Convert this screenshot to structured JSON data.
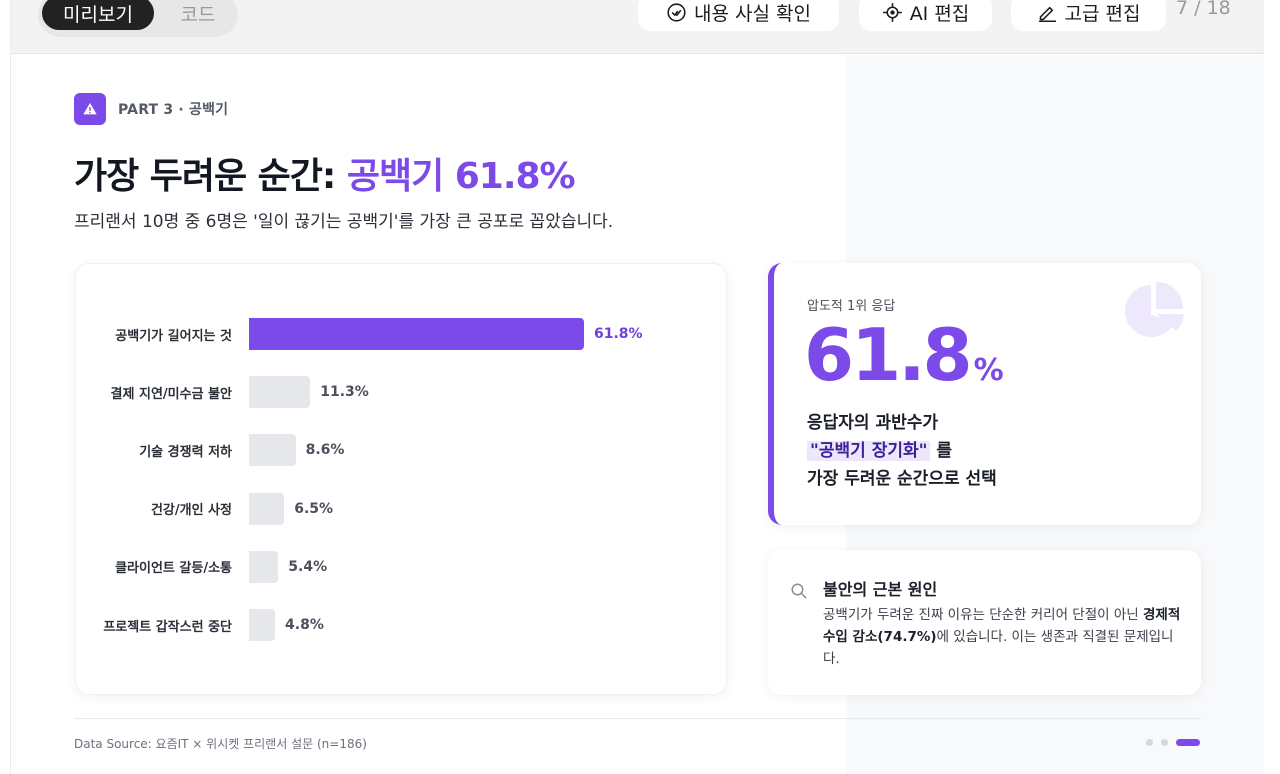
{
  "toolbar": {
    "view_tabs": [
      {
        "label": "미리보기",
        "active": true
      },
      {
        "label": "코드",
        "active": false
      }
    ],
    "buttons": {
      "fact_check": {
        "label": "내용 사실 확인",
        "icon": "check-circle-icon"
      },
      "ai_edit": {
        "label": "AI 편집",
        "icon": "crosshair-icon"
      },
      "advanced_edit": {
        "label": "고급 편집",
        "icon": "pencil-icon"
      }
    },
    "page_indicator": "7 / 18"
  },
  "slide": {
    "part_label": "PART 3 · 공백기",
    "part_icon": "warning-icon",
    "title_prefix": "가장 두려운 순간: ",
    "title_accent": "공백기 61.8%",
    "subtitle": "프리랜서 10명 중 6명은 '일이 끊기는 공백기'를 가장 큰 공포로 꼽았습니다.",
    "colors": {
      "accent": "#7c4ae8",
      "bar_muted": "#e6e7eb",
      "text_dark": "#131722"
    },
    "stat_card": {
      "kicker": "압도적 1위 응답",
      "value": "61.8",
      "unit": "%",
      "line1": "응답자의 과반수가",
      "highlight": "\"공백기 장기화\"",
      "line2_suffix": " 를",
      "line3": "가장 두려운 순간으로 선택",
      "icon": "pie-chart-icon"
    },
    "insight_card": {
      "icon": "search-icon",
      "title": "불안의 근본 원인",
      "body_prefix": "공백기가 두려운 진짜 이유는 단순한 커리어 단절이 아닌 ",
      "body_bold": "경제적 수입 감소(74.7%)",
      "body_suffix": "에 있습니다. 이는 생존과 직결된 문제입니다."
    },
    "source": "Data Source: 요즘IT × 위시켓 프리랜서 설문 (n=186)",
    "pagination_dots": 3,
    "active_dot": 2
  },
  "chart_data": {
    "type": "bar",
    "orientation": "horizontal",
    "title": "",
    "categories": [
      "공백기가 길어지는 것",
      "결제 지연/미수금 불안",
      "기술 경쟁력 저하",
      "건강/개인 사정",
      "클라이언트 갈등/소통",
      "프로젝트 갑작스런 중단"
    ],
    "values": [
      61.8,
      11.3,
      8.6,
      6.5,
      5.4,
      4.8
    ],
    "value_labels": [
      "61.8%",
      "11.3%",
      "8.6%",
      "6.5%",
      "5.4%",
      "4.8%"
    ],
    "highlight_index": 0,
    "xlabel": "",
    "ylabel": "",
    "grid": false,
    "legend": "none"
  }
}
